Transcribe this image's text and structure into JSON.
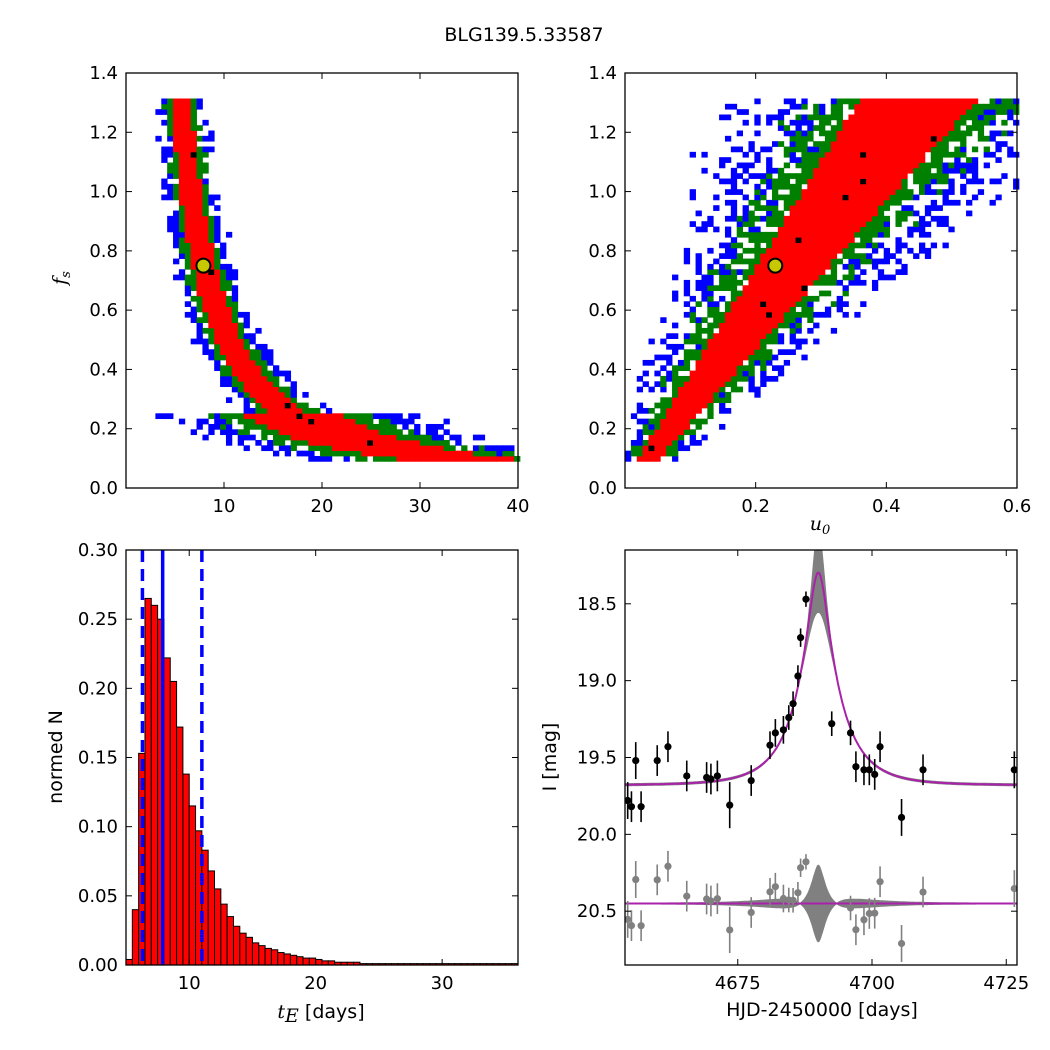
{
  "figure": {
    "title": "BLG139.5.33587"
  },
  "colors": {
    "sigma1": "#ff0000",
    "sigma2": "#008000",
    "sigma3": "#0000ff",
    "best": "#000000",
    "marker_fill": "#c8c800",
    "hist_bar": "#ff0000",
    "dashed": "#0000ff",
    "model": "#aa22aa",
    "band": "#808080",
    "residual": "#808080"
  },
  "chart_data": [
    {
      "id": "fs_vs_tE",
      "type": "heatmap",
      "title": "",
      "xlabel": "",
      "ylabel": "f_s",
      "xlim": [
        0,
        40
      ],
      "ylim": [
        0.0,
        1.4
      ],
      "xticks": [
        10,
        20,
        30,
        40
      ],
      "yticks": [
        0.0,
        0.2,
        0.4,
        0.6,
        0.8,
        1.0,
        1.2,
        1.4
      ],
      "grid": false,
      "marker": {
        "x": 7.9,
        "y": 0.75
      },
      "regions": "confidence contours 1σ red, 2σ green, 3σ blue, best-fit black; curved band from (6,1.3) to (36,0.1)"
    },
    {
      "id": "fs_vs_u0",
      "type": "heatmap",
      "title": "",
      "xlabel": "u_0",
      "ylabel": "",
      "xlim": [
        0.0,
        0.6
      ],
      "ylim": [
        0.0,
        1.4
      ],
      "xticks": [
        0.2,
        0.4,
        0.6
      ],
      "yticks": [
        0.0,
        0.2,
        0.4,
        0.6,
        0.8,
        1.0,
        1.2,
        1.4
      ],
      "grid": false,
      "marker": {
        "x": 0.23,
        "y": 0.75
      },
      "regions": "linear band from u0≈0.03 at f_s=0.1 to u0≈0.47 at f_s=1.3"
    },
    {
      "id": "tE_hist",
      "type": "bar",
      "title": "",
      "xlabel": "t_E [days]",
      "ylabel": "normed N",
      "xlim": [
        5,
        36
      ],
      "ylim": [
        0.0,
        0.3
      ],
      "xticks": [
        10,
        20,
        30
      ],
      "yticks": [
        0.0,
        0.05,
        0.1,
        0.15,
        0.2,
        0.25,
        0.3
      ],
      "grid": false,
      "bin_width": 0.5,
      "bin_start": 5.0,
      "values": [
        0.004,
        0.04,
        0.153,
        0.265,
        0.26,
        0.25,
        0.222,
        0.205,
        0.172,
        0.138,
        0.115,
        0.097,
        0.083,
        0.068,
        0.055,
        0.044,
        0.035,
        0.028,
        0.023,
        0.02,
        0.016,
        0.014,
        0.012,
        0.011,
        0.009,
        0.008,
        0.007,
        0.006,
        0.005,
        0.005,
        0.004,
        0.003,
        0.003,
        0.002,
        0.002,
        0.002,
        0.002,
        0.001,
        0.001,
        0.001,
        0.001,
        0.001,
        0.001,
        0.001,
        0.001,
        0.001,
        0.001,
        0.001,
        0.001,
        0.001,
        0.001,
        0.001,
        0.001,
        0.001,
        0.001,
        0.001,
        0.001,
        0.001,
        0.001,
        0.001,
        0.001,
        0.001
      ],
      "vlines": [
        {
          "x": 6.3,
          "style": "dashed"
        },
        {
          "x": 7.9,
          "style": "solid"
        },
        {
          "x": 11.0,
          "style": "dashed"
        }
      ]
    },
    {
      "id": "lightcurve",
      "type": "scatter",
      "title": "",
      "xlabel": "HJD-2450000 [days]",
      "ylabel": "I [mag]",
      "xlim": [
        4654,
        4727
      ],
      "ylim": [
        20.85,
        18.15
      ],
      "xticks": [
        4675,
        4700,
        4725
      ],
      "yticks": [
        18.5,
        19.0,
        19.5,
        20.0,
        20.5
      ],
      "ytick_labels": [
        "18.5",
        "19.0",
        "19.5",
        "20.0",
        "20.5"
      ],
      "grid": false,
      "model": {
        "t0": 4690,
        "tE": 7.9,
        "u0": 0.23,
        "fs": 0.75,
        "baseline": 19.68
      },
      "residual_offset": 20.45,
      "points": [
        {
          "x": 4654.5,
          "y": 19.78,
          "e": 0.12
        },
        {
          "x": 4655.2,
          "y": 19.82,
          "e": 0.1
        },
        {
          "x": 4656.0,
          "y": 19.52,
          "e": 0.12
        },
        {
          "x": 4657.0,
          "y": 19.82,
          "e": 0.1
        },
        {
          "x": 4660.0,
          "y": 19.52,
          "e": 0.1
        },
        {
          "x": 4662.0,
          "y": 19.43,
          "e": 0.1
        },
        {
          "x": 4665.5,
          "y": 19.62,
          "e": 0.1
        },
        {
          "x": 4669.2,
          "y": 19.63,
          "e": 0.1
        },
        {
          "x": 4670.0,
          "y": 19.64,
          "e": 0.1
        },
        {
          "x": 4671.2,
          "y": 19.62,
          "e": 0.1
        },
        {
          "x": 4673.5,
          "y": 19.81,
          "e": 0.15
        },
        {
          "x": 4677.5,
          "y": 19.65,
          "e": 0.1
        },
        {
          "x": 4681.0,
          "y": 19.42,
          "e": 0.09
        },
        {
          "x": 4682.0,
          "y": 19.34,
          "e": 0.09
        },
        {
          "x": 4683.5,
          "y": 19.32,
          "e": 0.09
        },
        {
          "x": 4684.5,
          "y": 19.24,
          "e": 0.08
        },
        {
          "x": 4685.3,
          "y": 19.15,
          "e": 0.08
        },
        {
          "x": 4686.2,
          "y": 18.97,
          "e": 0.07
        },
        {
          "x": 4686.7,
          "y": 18.72,
          "e": 0.06
        },
        {
          "x": 4687.7,
          "y": 18.47,
          "e": 0.05
        },
        {
          "x": 4692.5,
          "y": 19.28,
          "e": 0.08
        },
        {
          "x": 4696.0,
          "y": 19.34,
          "e": 0.08
        },
        {
          "x": 4697.0,
          "y": 19.56,
          "e": 0.1
        },
        {
          "x": 4698.5,
          "y": 19.58,
          "e": 0.1
        },
        {
          "x": 4699.5,
          "y": 19.58,
          "e": 0.1
        },
        {
          "x": 4700.5,
          "y": 19.61,
          "e": 0.1
        },
        {
          "x": 4701.5,
          "y": 19.43,
          "e": 0.1
        },
        {
          "x": 4705.5,
          "y": 19.89,
          "e": 0.12
        },
        {
          "x": 4709.5,
          "y": 19.58,
          "e": 0.1
        },
        {
          "x": 4726.5,
          "y": 19.58,
          "e": 0.12
        }
      ]
    }
  ]
}
